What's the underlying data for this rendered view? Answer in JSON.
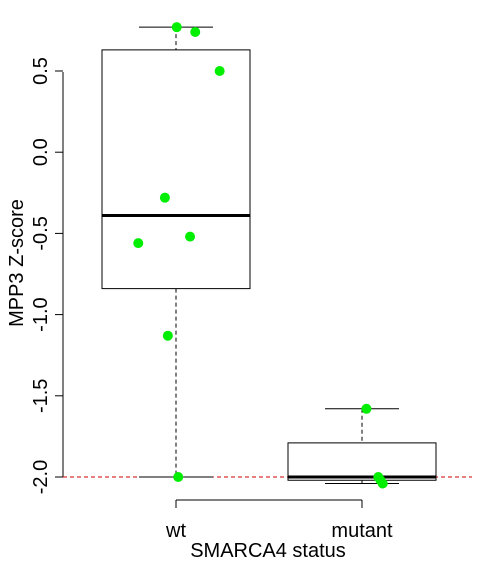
{
  "chart_data": {
    "type": "box",
    "xlabel": "SMARCA4 status",
    "ylabel": "MPP3 Z-score",
    "ylim": [
      -2.1,
      0.78
    ],
    "yticks": [
      -2.0,
      -1.5,
      -1.0,
      -0.5,
      0.0,
      0.5
    ],
    "ytick_labels": [
      "-2.0",
      "-1.5",
      "-1.0",
      "-0.5",
      "0.0",
      "0.5"
    ],
    "categories": [
      "wt",
      "mutant"
    ],
    "boxes": [
      {
        "category": "wt",
        "whisker_low": -2.0,
        "q1": -0.84,
        "median": -0.39,
        "q3": 0.63,
        "whisker_high": 0.77
      },
      {
        "category": "mutant",
        "whisker_low": -2.04,
        "q1": -2.02,
        "median": -2.0,
        "q3": -1.79,
        "whisker_high": -1.58
      }
    ],
    "points": [
      {
        "category": "wt",
        "values": [
          0.77,
          0.74,
          0.5,
          -0.28,
          -0.52,
          -0.56,
          -1.13,
          -2.0
        ],
        "jitter": [
          0.01,
          0.26,
          0.59,
          -0.15,
          0.19,
          -0.51,
          -0.11,
          0.03
        ]
      },
      {
        "category": "mutant",
        "values": [
          -1.58,
          -2.0,
          -2.02,
          -2.04
        ],
        "jitter": [
          0.06,
          0.22,
          0.25,
          0.28
        ]
      }
    ],
    "reference_line": {
      "y": -2.0,
      "style": "dashed",
      "color": "#cc0000"
    },
    "point_color": "#00ee00",
    "grid": false,
    "legend": "none"
  }
}
